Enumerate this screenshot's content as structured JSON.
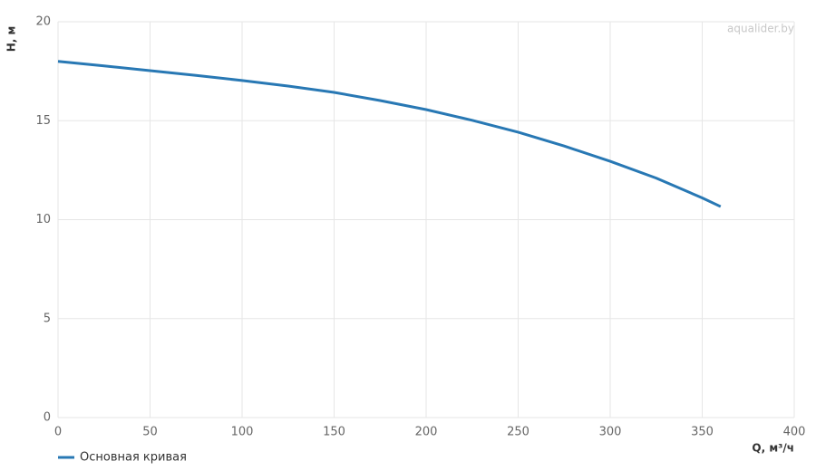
{
  "chart_data": {
    "type": "line",
    "watermark": "aqualider.by",
    "y_label": "H, м",
    "x_label": "Q, м³/ч",
    "x": [
      0,
      25,
      50,
      75,
      100,
      125,
      150,
      175,
      200,
      225,
      250,
      275,
      300,
      325,
      350,
      360
    ],
    "series": [
      {
        "name": "Основная кривая",
        "color": "#2878b4",
        "values": [
          18.0,
          17.77,
          17.53,
          17.29,
          17.03,
          16.75,
          16.43,
          16.02,
          15.56,
          15.02,
          14.42,
          13.72,
          12.95,
          12.1,
          11.1,
          10.66
        ]
      }
    ],
    "xlim": [
      0,
      400
    ],
    "xticks": [
      0,
      50,
      100,
      150,
      200,
      250,
      300,
      350,
      400
    ],
    "ylim": [
      0,
      20
    ],
    "yticks": [
      0,
      5,
      10,
      15,
      20
    ],
    "grid": true,
    "legend": "bottom-left"
  }
}
